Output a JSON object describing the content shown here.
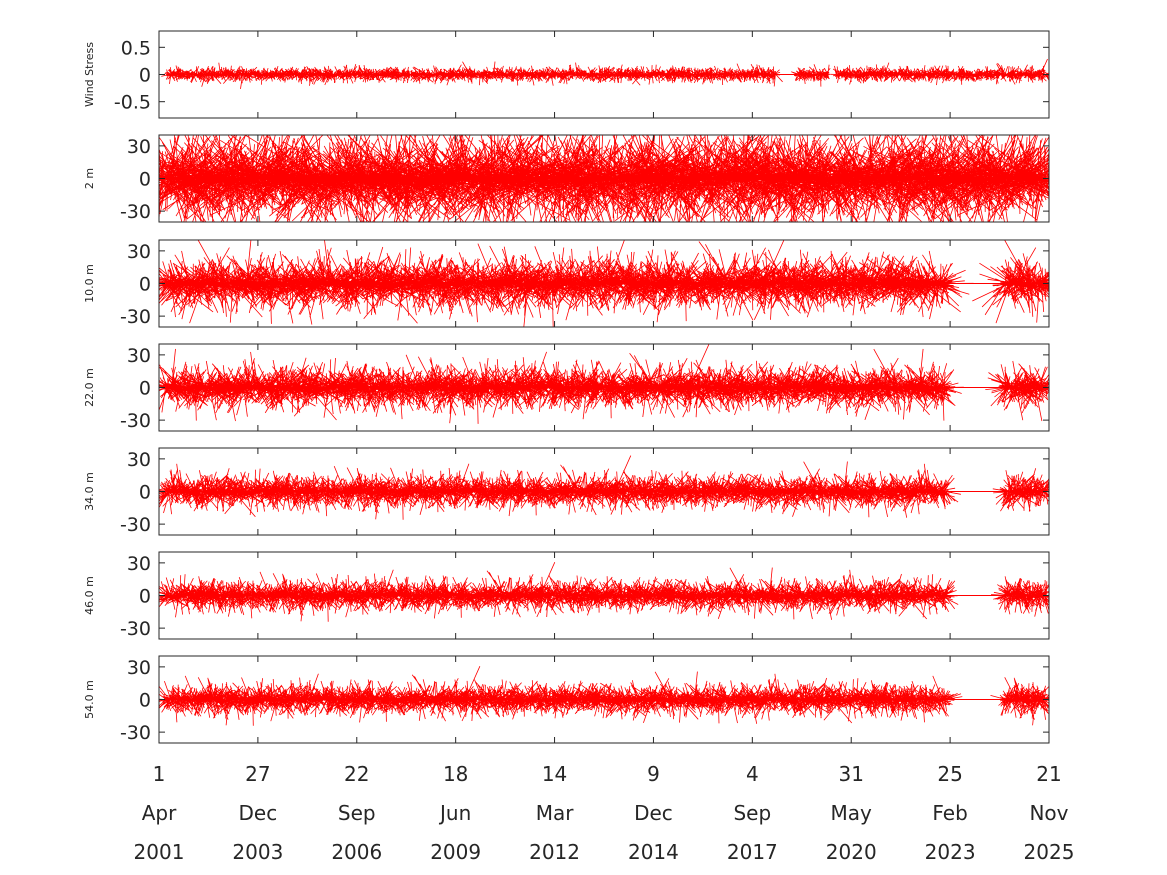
{
  "chart_data": {
    "type": "stick",
    "color": "#ff0000",
    "grid": false,
    "x_range": [
      "2001-04-01",
      "2025-11-21"
    ],
    "x_ticks": [
      {
        "day": "1",
        "month": "Apr",
        "year": "2001"
      },
      {
        "day": "27",
        "month": "Dec",
        "year": "2003"
      },
      {
        "day": "22",
        "month": "Sep",
        "year": "2006"
      },
      {
        "day": "18",
        "month": "Jun",
        "year": "2009"
      },
      {
        "day": "14",
        "month": "Mar",
        "year": "2012"
      },
      {
        "day": "9",
        "month": "Dec",
        "year": "2014"
      },
      {
        "day": "4",
        "month": "Sep",
        "year": "2017"
      },
      {
        "day": "31",
        "month": "May",
        "year": "2020"
      },
      {
        "day": "25",
        "month": "Feb",
        "year": "2023"
      },
      {
        "day": "21",
        "month": "Nov",
        "year": "2025"
      }
    ],
    "panels": [
      {
        "ylabel": "Wind Stress",
        "ylim": [
          -0.8,
          0.8
        ],
        "yticks": [
          {
            "v": 0.5,
            "label": "0.5"
          },
          {
            "v": 0,
            "label": "0"
          },
          {
            "v": -0.5,
            "label": "-0.5"
          }
        ],
        "typical_amplitude": 0.12,
        "data_segments": [
          [
            "2001-07-01",
            "2018-05-01"
          ],
          [
            "2018-12-01",
            "2019-10-15"
          ],
          [
            "2020-01-01",
            "2025-10-25"
          ]
        ],
        "flat_segments": [
          [
            "2018-05-01",
            "2018-12-01"
          ]
        ]
      },
      {
        "ylabel": "2 m",
        "ylim": [
          -40,
          40
        ],
        "yticks": [
          {
            "v": 30,
            "label": "30"
          },
          {
            "v": 0,
            "label": "0"
          },
          {
            "v": -30,
            "label": "-30"
          }
        ],
        "typical_amplitude": 40,
        "data_segments": [
          [
            "2001-04-01",
            "2025-11-21"
          ]
        ],
        "flat_segments": []
      },
      {
        "ylabel": "10.0 m",
        "ylim": [
          -40,
          40
        ],
        "yticks": [
          {
            "v": 30,
            "label": "30"
          },
          {
            "v": 0,
            "label": "0"
          },
          {
            "v": -30,
            "label": "-30"
          }
        ],
        "typical_amplitude": 22,
        "data_segments": [
          [
            "2001-06-01",
            "2023-01-15"
          ],
          [
            "2024-09-01",
            "2025-10-25"
          ]
        ],
        "flat_segments": [
          [
            "2023-01-15",
            "2024-09-01"
          ]
        ]
      },
      {
        "ylabel": "22.0 m",
        "ylim": [
          -40,
          40
        ],
        "yticks": [
          {
            "v": 30,
            "label": "30"
          },
          {
            "v": 0,
            "label": "0"
          },
          {
            "v": -30,
            "label": "-30"
          }
        ],
        "typical_amplitude": 18,
        "data_segments": [
          [
            "2001-06-01",
            "2023-01-15"
          ],
          [
            "2024-09-01",
            "2025-10-25"
          ]
        ],
        "flat_segments": [
          [
            "2023-01-15",
            "2024-09-01"
          ]
        ]
      },
      {
        "ylabel": "34.0 m",
        "ylim": [
          -40,
          40
        ],
        "yticks": [
          {
            "v": 30,
            "label": "30"
          },
          {
            "v": 0,
            "label": "0"
          },
          {
            "v": -30,
            "label": "-30"
          }
        ],
        "typical_amplitude": 14,
        "data_segments": [
          [
            "2001-06-01",
            "2023-01-15"
          ],
          [
            "2024-09-01",
            "2025-10-25"
          ]
        ],
        "flat_segments": [
          [
            "2023-01-15",
            "2024-09-01"
          ]
        ]
      },
      {
        "ylabel": "46.0 m",
        "ylim": [
          -40,
          40
        ],
        "yticks": [
          {
            "v": 30,
            "label": "30"
          },
          {
            "v": 0,
            "label": "0"
          },
          {
            "v": -30,
            "label": "-30"
          }
        ],
        "typical_amplitude": 13,
        "data_segments": [
          [
            "2001-06-01",
            "2023-01-15"
          ],
          [
            "2024-09-01",
            "2025-10-25"
          ]
        ],
        "flat_segments": [
          [
            "2023-01-15",
            "2024-09-01"
          ]
        ]
      },
      {
        "ylabel": "54.0 m",
        "ylim": [
          -40,
          40
        ],
        "yticks": [
          {
            "v": 30,
            "label": "30"
          },
          {
            "v": 0,
            "label": "0"
          },
          {
            "v": -30,
            "label": "-30"
          }
        ],
        "typical_amplitude": 13,
        "data_segments": [
          [
            "2001-06-01",
            "2023-01-15"
          ],
          [
            "2024-09-01",
            "2025-10-25"
          ]
        ],
        "flat_segments": [
          [
            "2023-01-15",
            "2024-09-01"
          ]
        ]
      }
    ]
  }
}
